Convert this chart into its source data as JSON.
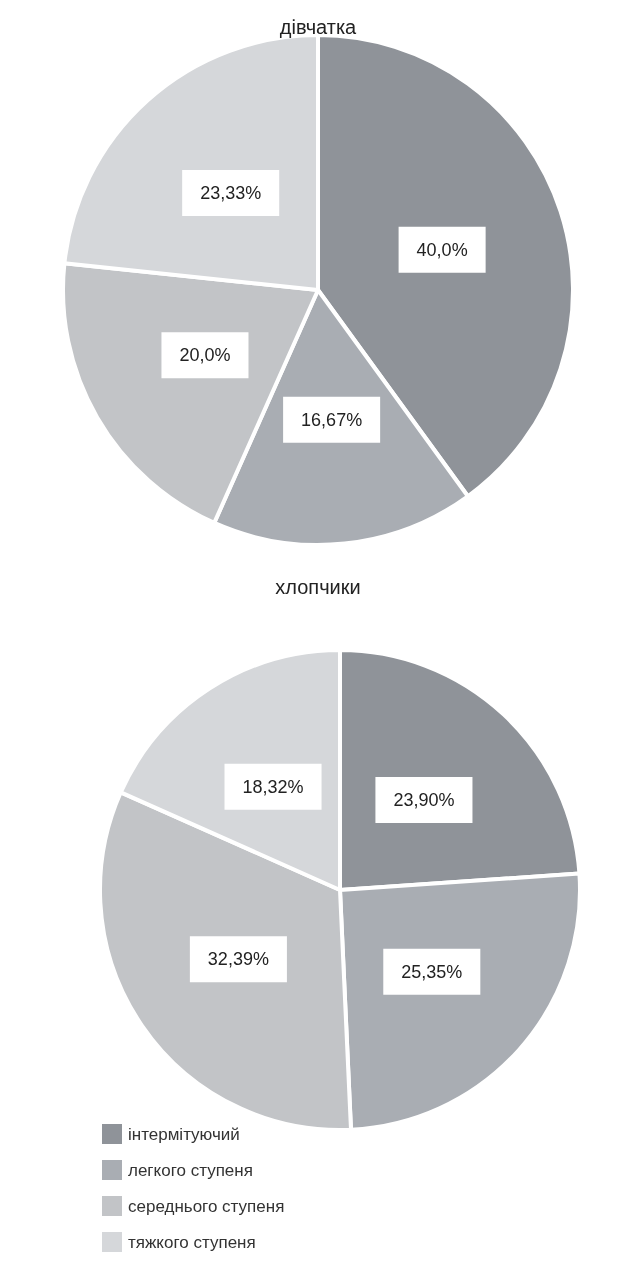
{
  "chart_data": [
    {
      "type": "pie",
      "title": "дівчатка",
      "categories": [
        null,
        null,
        null,
        null
      ],
      "values": [
        40.0,
        16.67,
        20.0,
        23.33
      ],
      "value_labels": [
        "40,0%",
        "16,67%",
        "20,0%",
        "23,33%"
      ],
      "colors": [
        "#8f9399",
        "#a9adb3",
        "#c2c4c7",
        "#d5d7da"
      ],
      "legend": false
    },
    {
      "type": "pie",
      "title": "хлопчики",
      "categories": [
        "інтермітуючий",
        "легкого ступеня",
        "середнього ступеня",
        "тяжкого ступеня"
      ],
      "values": [
        23.9,
        25.35,
        32.39,
        18.32
      ],
      "value_labels": [
        "23,90%",
        "25,35%",
        "32,39%",
        "18,32%"
      ],
      "colors": [
        "#8f9399",
        "#a9adb3",
        "#c2c4c7",
        "#d5d7da"
      ],
      "legend": "bottom left"
    }
  ]
}
